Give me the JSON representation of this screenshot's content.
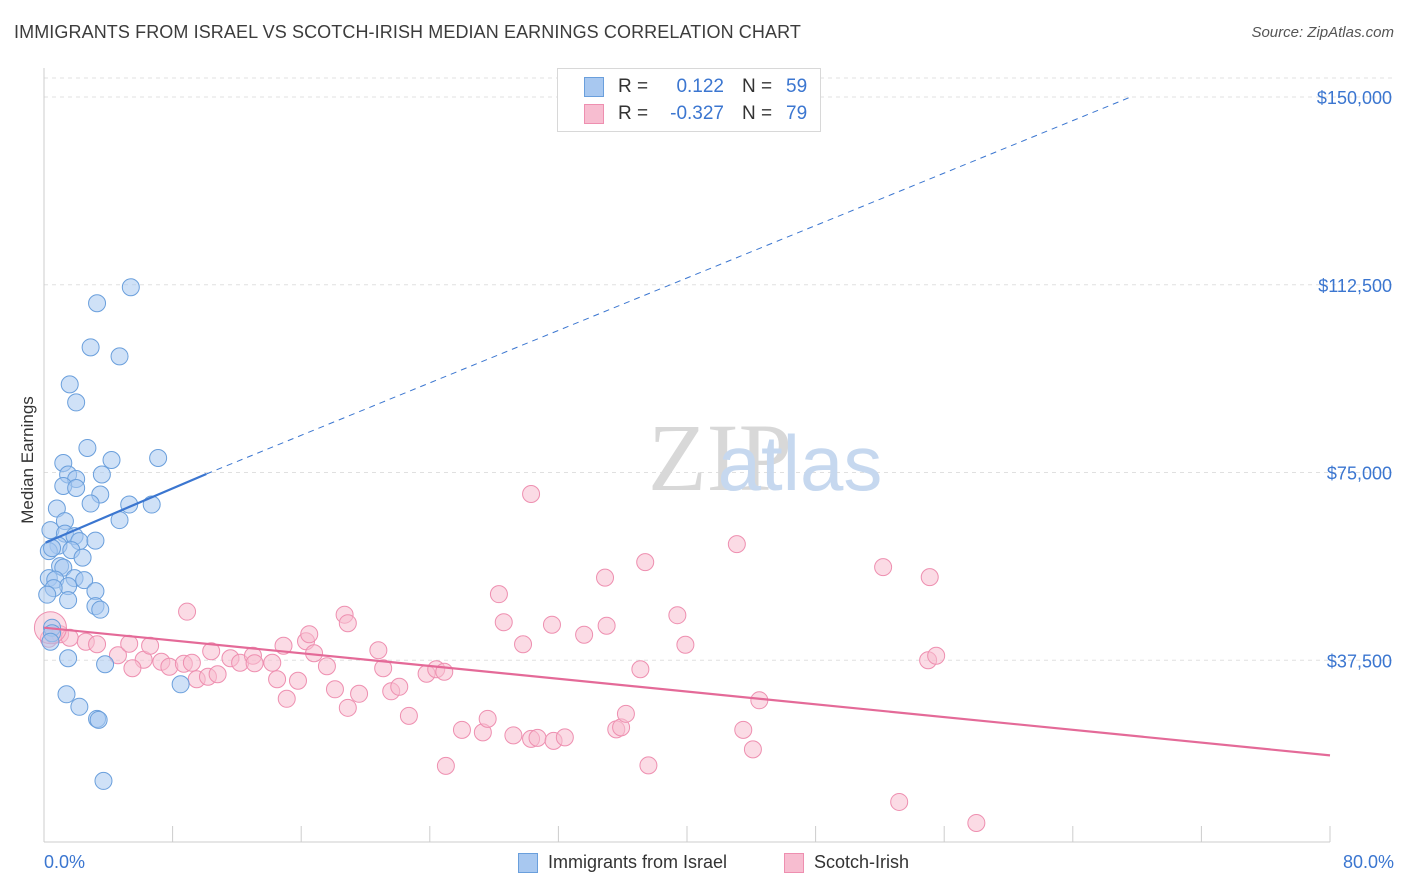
{
  "header": {
    "title": "IMMIGRANTS FROM ISRAEL VS SCOTCH-IRISH MEDIAN EARNINGS CORRELATION CHART",
    "source": "Source: ZipAtlas.com"
  },
  "legend": {
    "rows": [
      {
        "r_label": "R =",
        "r_value": "0.122",
        "n_label": "N =",
        "n_value": "59"
      },
      {
        "r_label": "R =",
        "r_value": "-0.327",
        "n_label": "N =",
        "n_value": "79"
      }
    ]
  },
  "bottom_legend": {
    "israel": "Immigrants from Israel",
    "scotch": "Scotch-Irish"
  },
  "colors": {
    "israel_fill": "#a8c8f0",
    "israel_stroke": "#6a9fdc",
    "israel_line": "#3b76d0",
    "scotch_fill": "#f7bdd0",
    "scotch_stroke": "#ee8fb0",
    "scotch_line": "#e46a98",
    "tick_label": "#3b76d0",
    "grid": "#e0e0e0"
  },
  "chart_data": {
    "type": "scatter",
    "title": "IMMIGRANTS FROM ISRAEL VS SCOTCH-IRISH MEDIAN EARNINGS CORRELATION CHART",
    "xlabel": "",
    "ylabel": "Median Earnings",
    "xlim": [
      0,
      80
    ],
    "ylim": [
      0,
      150000
    ],
    "x_tick_labels": [
      "0.0%",
      "80.0%"
    ],
    "y_ticks": [
      37500,
      75000,
      112500,
      150000
    ],
    "y_tick_labels": [
      "$37,500",
      "$75,000",
      "$112,500",
      "$150,000"
    ],
    "grid": true,
    "legend_position": "top-center",
    "watermark": "ZIPatlas",
    "series": [
      {
        "name": "Immigrants from Israel",
        "r": 0.122,
        "n": 59,
        "trend": {
          "x0": 0.1,
          "y0": 61000,
          "x1": 10.1,
          "y1": 74700,
          "dashed_to_x": 67.6,
          "dashed_to_y": 150000
        },
        "points": [
          [
            5.4,
            112000
          ],
          [
            3.3,
            108800
          ],
          [
            2.9,
            100000
          ],
          [
            4.7,
            98200
          ],
          [
            1.6,
            92600
          ],
          [
            2.0,
            89000
          ],
          [
            2.7,
            79900
          ],
          [
            4.2,
            77500
          ],
          [
            7.1,
            77900
          ],
          [
            1.2,
            76900
          ],
          [
            1.5,
            74600
          ],
          [
            3.6,
            74600
          ],
          [
            2.0,
            73700
          ],
          [
            1.2,
            72300
          ],
          [
            2.0,
            71900
          ],
          [
            3.5,
            70600
          ],
          [
            2.9,
            68800
          ],
          [
            5.3,
            68600
          ],
          [
            6.7,
            68600
          ],
          [
            0.8,
            67800
          ],
          [
            1.3,
            65300
          ],
          [
            4.7,
            65500
          ],
          [
            0.4,
            63500
          ],
          [
            1.3,
            62800
          ],
          [
            1.9,
            62300
          ],
          [
            2.2,
            61300
          ],
          [
            3.2,
            61400
          ],
          [
            0.9,
            60400
          ],
          [
            1.7,
            59500
          ],
          [
            0.3,
            59300
          ],
          [
            0.5,
            59900
          ],
          [
            2.4,
            58000
          ],
          [
            1.0,
            56300
          ],
          [
            1.2,
            56000
          ],
          [
            0.3,
            53900
          ],
          [
            0.7,
            53600
          ],
          [
            1.9,
            53900
          ],
          [
            2.5,
            53500
          ],
          [
            1.5,
            52300
          ],
          [
            0.6,
            51900
          ],
          [
            3.2,
            51300
          ],
          [
            0.2,
            50600
          ],
          [
            1.5,
            49500
          ],
          [
            3.2,
            48300
          ],
          [
            3.5,
            47600
          ],
          [
            0.5,
            44000
          ],
          [
            0.5,
            42900
          ],
          [
            0.4,
            41200
          ],
          [
            1.5,
            37900
          ],
          [
            3.8,
            36700
          ],
          [
            8.5,
            32700
          ],
          [
            1.4,
            30700
          ],
          [
            2.2,
            28200
          ],
          [
            3.3,
            25800
          ],
          [
            3.4,
            25600
          ],
          [
            3.7,
            13400
          ]
        ]
      },
      {
        "name": "Scotch-Irish",
        "r": -0.327,
        "n": 79,
        "trend": {
          "x0": 0,
          "y0": 44000,
          "x1": 80,
          "y1": 18500
        },
        "points": [
          [
            0.3,
            41800
          ],
          [
            0.6,
            42500
          ],
          [
            1.0,
            42700
          ],
          [
            1.6,
            42000
          ],
          [
            2.6,
            41200
          ],
          [
            3.3,
            40700
          ],
          [
            4.6,
            38500
          ],
          [
            5.3,
            40800
          ],
          [
            6.2,
            37600
          ],
          [
            5.5,
            35900
          ],
          [
            6.6,
            40400
          ],
          [
            7.3,
            37200
          ],
          [
            7.8,
            36200
          ],
          [
            8.7,
            36800
          ],
          [
            9.2,
            37000
          ],
          [
            8.9,
            47200
          ],
          [
            9.5,
            33700
          ],
          [
            10.2,
            34200
          ],
          [
            10.8,
            34700
          ],
          [
            10.4,
            39300
          ],
          [
            11.6,
            37900
          ],
          [
            12.2,
            37000
          ],
          [
            13.0,
            38400
          ],
          [
            13.1,
            36900
          ],
          [
            14.2,
            37000
          ],
          [
            14.5,
            33700
          ],
          [
            14.9,
            40400
          ],
          [
            15.1,
            29800
          ],
          [
            15.8,
            33400
          ],
          [
            16.3,
            41300
          ],
          [
            16.5,
            42700
          ],
          [
            16.8,
            38900
          ],
          [
            17.6,
            36300
          ],
          [
            18.1,
            31700
          ],
          [
            18.7,
            46600
          ],
          [
            18.9,
            44900
          ],
          [
            18.9,
            28000
          ],
          [
            19.6,
            30800
          ],
          [
            20.8,
            39500
          ],
          [
            21.1,
            35900
          ],
          [
            21.6,
            31300
          ],
          [
            22.1,
            32200
          ],
          [
            22.7,
            26400
          ],
          [
            23.8,
            34800
          ],
          [
            24.4,
            35700
          ],
          [
            24.9,
            35200
          ],
          [
            25.0,
            16400
          ],
          [
            26.0,
            23600
          ],
          [
            27.3,
            23100
          ],
          [
            27.6,
            25800
          ],
          [
            28.3,
            50700
          ],
          [
            28.6,
            45100
          ],
          [
            29.2,
            22500
          ],
          [
            29.8,
            40700
          ],
          [
            30.3,
            21800
          ],
          [
            30.7,
            22000
          ],
          [
            30.3,
            70700
          ],
          [
            31.6,
            44600
          ],
          [
            31.7,
            21400
          ],
          [
            32.4,
            22100
          ],
          [
            33.6,
            42600
          ],
          [
            35.0,
            44400
          ],
          [
            34.9,
            54000
          ],
          [
            35.6,
            23700
          ],
          [
            35.9,
            24100
          ],
          [
            36.2,
            26800
          ],
          [
            37.1,
            35700
          ],
          [
            37.6,
            16500
          ],
          [
            37.4,
            57100
          ],
          [
            39.4,
            46500
          ],
          [
            39.9,
            40600
          ],
          [
            43.1,
            60700
          ],
          [
            43.5,
            23600
          ],
          [
            44.1,
            19700
          ],
          [
            44.5,
            29500
          ],
          [
            52.2,
            56100
          ],
          [
            53.2,
            9200
          ],
          [
            55.0,
            37500
          ],
          [
            55.5,
            38400
          ],
          [
            55.1,
            54100
          ],
          [
            58.0,
            5000
          ]
        ]
      }
    ]
  }
}
